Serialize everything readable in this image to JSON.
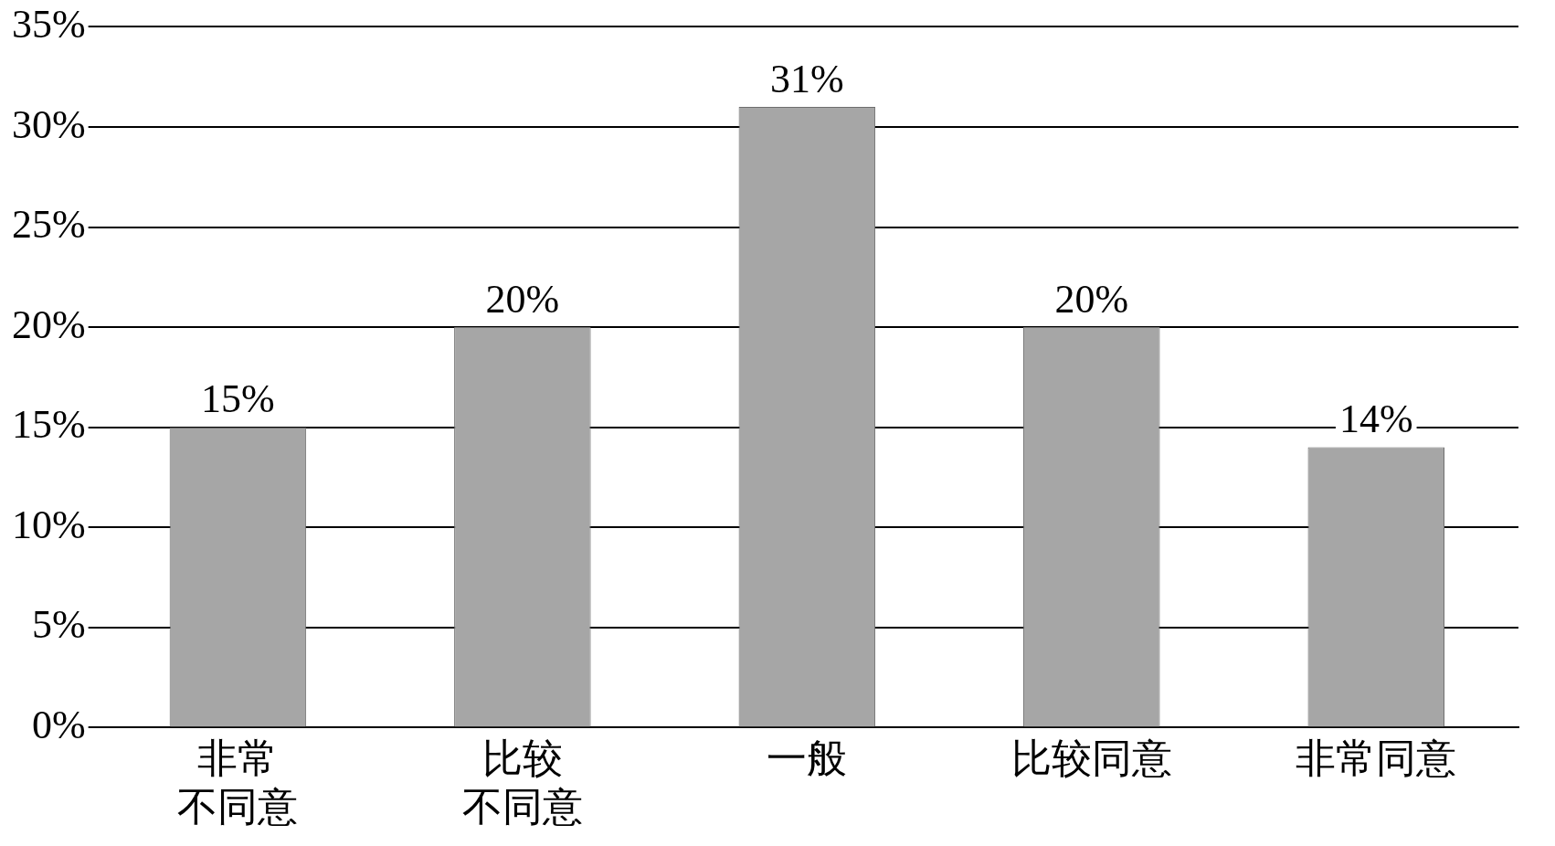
{
  "chart_data": {
    "type": "bar",
    "categories": [
      "非常不同意",
      "比较不同意",
      "一般",
      "比较同意",
      "非常同意"
    ],
    "values": [
      15,
      20,
      31,
      20,
      14
    ],
    "color": "#a6a6a6",
    "value_labels": [
      "15%",
      "20%",
      "31%",
      "20%",
      "14%"
    ],
    "ylim": [
      0,
      35
    ],
    "yticks": [
      {
        "value": 0,
        "label": "0%"
      },
      {
        "value": 5,
        "label": "5%"
      },
      {
        "value": 10,
        "label": "10%"
      },
      {
        "value": 15,
        "label": "15%"
      },
      {
        "value": 20,
        "label": "20%"
      },
      {
        "value": 25,
        "label": "25%"
      },
      {
        "value": 30,
        "label": "30%"
      },
      {
        "value": 35,
        "label": "35%"
      }
    ],
    "grid": "y",
    "legend": false
  }
}
